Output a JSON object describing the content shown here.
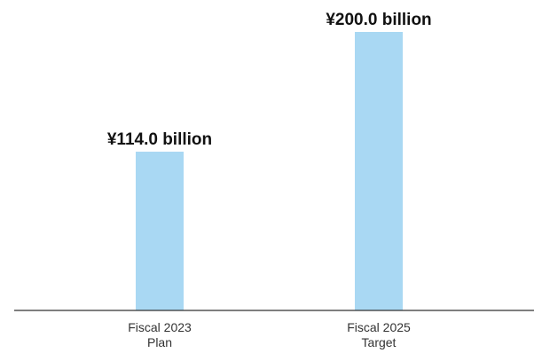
{
  "chart_data": {
    "type": "bar",
    "categories": [
      [
        "Fiscal 2023",
        "Plan"
      ],
      [
        "Fiscal 2025",
        "Target"
      ]
    ],
    "values": [
      114.0,
      200.0
    ],
    "data_labels": [
      "¥114.0 billion",
      "¥200.0 billion"
    ],
    "title": "",
    "xlabel": "",
    "ylabel": "",
    "ylim": [
      0,
      200
    ],
    "grid": false,
    "legend": "none",
    "bar_color": "#a9d8f3",
    "axis_color": "#333333"
  }
}
